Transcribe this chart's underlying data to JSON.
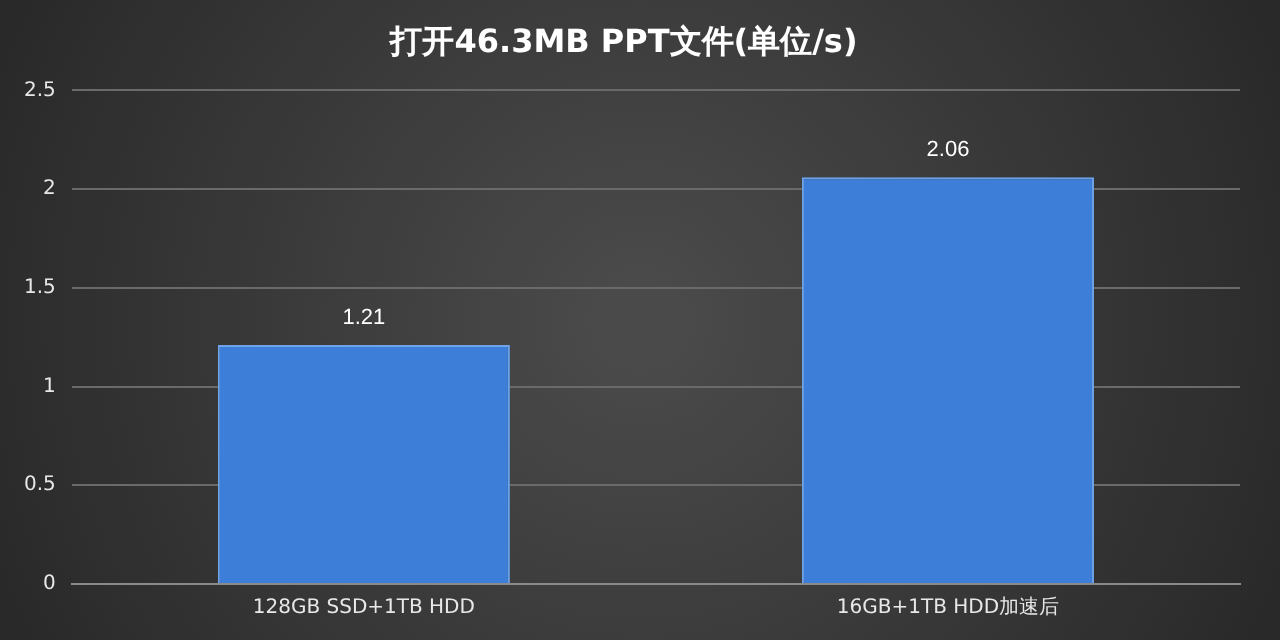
{
  "chart_data": {
    "type": "bar",
    "title": "打开46.3MB PPT文件(单位/s)",
    "categories": [
      "128GB SSD+1TB HDD",
      "16GB+1TB HDD加速后"
    ],
    "values": [
      1.21,
      2.06
    ],
    "color": "#3d7fd8",
    "ylim": [
      0,
      2.5
    ],
    "yticks": [
      0,
      0.5,
      1,
      1.5,
      2,
      2.5
    ],
    "grid": "y",
    "data_labels": true
  }
}
